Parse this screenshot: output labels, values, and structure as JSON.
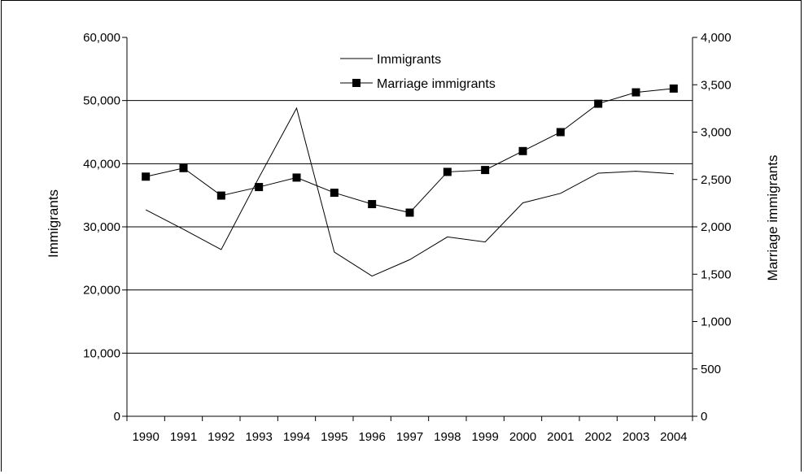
{
  "chart_data": {
    "type": "line",
    "title": "",
    "categories": [
      "1990",
      "1991",
      "1992",
      "1993",
      "1994",
      "1995",
      "1996",
      "1997",
      "1998",
      "1999",
      "2000",
      "2001",
      "2002",
      "2003",
      "2004"
    ],
    "ylabel_left": "Immigrants",
    "ylabel_right": "Marriage immigrants",
    "ylim_left": [
      0,
      60000
    ],
    "ylim_right": [
      0,
      4000
    ],
    "yticks_left": [
      "0",
      "10,000",
      "20,000",
      "30,000",
      "40,000",
      "50,000",
      "60,000"
    ],
    "yticks_right": [
      "0",
      "500",
      "1,000",
      "1,500",
      "2,000",
      "2,500",
      "3,000",
      "3,500",
      "4,000"
    ],
    "grid": "horizontal",
    "legend_position": "top-center",
    "series": [
      {
        "name": "Immigrants",
        "axis": "left",
        "marker": "none",
        "color": "#000000",
        "values": [
          32700,
          29600,
          26400,
          37800,
          48800,
          26000,
          22200,
          24800,
          28400,
          27600,
          33800,
          35300,
          38500,
          38800,
          38400
        ]
      },
      {
        "name": "Marriage immigrants",
        "axis": "right",
        "marker": "square",
        "color": "#000000",
        "values": [
          2530,
          2620,
          2330,
          2420,
          2520,
          2360,
          2240,
          2150,
          2580,
          2600,
          2800,
          3000,
          3300,
          3420,
          3460
        ]
      }
    ]
  }
}
